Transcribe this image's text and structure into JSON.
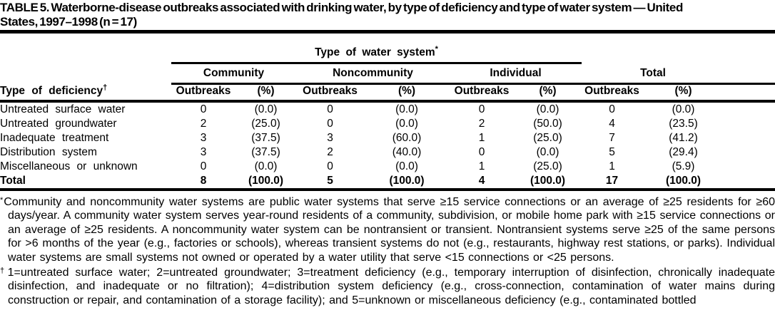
{
  "title": {
    "line1": "TABLE 5. Waterborne-disease outbreaks associated with drinking water, by type of deficiency and type of water system — United",
    "line2": "States, 1997–1998 (n = 17)"
  },
  "table": {
    "spanner": {
      "label": "Type of water system",
      "marker": "*"
    },
    "row_header": {
      "label": "Type of deficiency",
      "marker": "†"
    },
    "groups": [
      {
        "label": "Community"
      },
      {
        "label": "Noncommunity"
      },
      {
        "label": "Individual"
      },
      {
        "label": "Total"
      }
    ],
    "col_headers": {
      "outbreaks": "Outbreaks",
      "pct": "(%)"
    },
    "rows": [
      {
        "label": "Untreated surface water",
        "values": [
          "0",
          "(0.0)",
          "0",
          "(0.0)",
          "0",
          "(0.0)",
          "0",
          "(0.0)"
        ]
      },
      {
        "label": "Untreated groundwater",
        "values": [
          "2",
          "(25.0)",
          "0",
          "(0.0)",
          "2",
          "(50.0)",
          "4",
          "(23.5)"
        ]
      },
      {
        "label": "Inadequate treatment",
        "values": [
          "3",
          "(37.5)",
          "3",
          "(60.0)",
          "1",
          "(25.0)",
          "7",
          "(41.2)"
        ]
      },
      {
        "label": "Distribution system",
        "values": [
          "3",
          "(37.5)",
          "2",
          "(40.0)",
          "0",
          "(0.0)",
          "5",
          "(29.4)"
        ]
      },
      {
        "label": "Miscellaneous or unknown",
        "values": [
          "0",
          "(0.0)",
          "0",
          "(0.0)",
          "1",
          "(25.0)",
          "1",
          "(5.9)"
        ]
      },
      {
        "label": "Total",
        "values": [
          "8",
          "(100.0)",
          "5",
          "(100.0)",
          "4",
          "(100.0)",
          "17",
          "(100.0)"
        ]
      }
    ]
  },
  "footnotes": [
    {
      "marker": "*",
      "text": "Community and noncommunity water systems are public water systems that serve ≥15 service connections or an average of ≥25 residents for ≥60 days/year. A community water system serves year-round residents of a community, subdivision, or mobile home park with ≥15 service connections or an average of ≥25 residents. A noncommunity water system can be nontransient or transient. Nontransient systems serve ≥25 of the same persons for >6 months of the year (e.g., factories or schools), whereas transient systems do not (e.g., restaurants, highway rest stations, or parks). Individual water systems are small systems not owned or operated by a water utility that serve <15 connections or <25 persons."
    },
    {
      "marker": "†",
      "text": "1=untreated surface water; 2=untreated groundwater; 3=treatment deficiency (e.g., temporary interruption of disinfection, chronically inadequate disinfection, and inadequate or no filtration); 4=distribution system deficiency (e.g., cross-connection, contamination of water mains during construction or repair, and contamination of a storage facility); and 5=unknown or miscellaneous deficiency (e.g., contaminated bottled"
    }
  ]
}
